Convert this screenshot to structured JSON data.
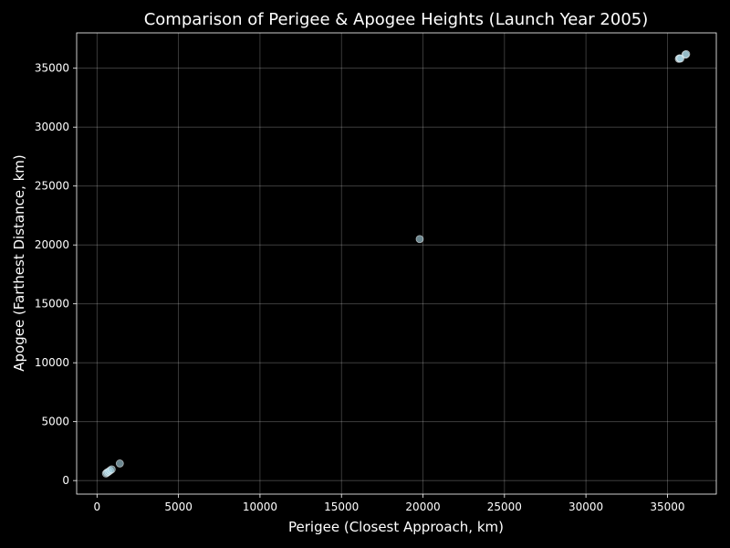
{
  "chart_data": {
    "type": "scatter",
    "title": "Comparison of Perigee & Apogee Heights (Launch Year 2005)",
    "xlabel": "Perigee (Closest Approach, km)",
    "ylabel": "Apogee (Farthest Distance, km)",
    "xlim": [
      -1250,
      38000
    ],
    "ylim": [
      -1150,
      38000
    ],
    "xticks": [
      0,
      5000,
      10000,
      15000,
      20000,
      25000,
      30000,
      35000
    ],
    "yticks": [
      0,
      5000,
      10000,
      15000,
      20000,
      25000,
      30000,
      35000
    ],
    "grid": true,
    "point_color": "#add8e6",
    "background_color": "#000000",
    "points": [
      {
        "x": 550,
        "y": 600
      },
      {
        "x": 620,
        "y": 680
      },
      {
        "x": 700,
        "y": 750
      },
      {
        "x": 800,
        "y": 850
      },
      {
        "x": 900,
        "y": 950
      },
      {
        "x": 1400,
        "y": 1450
      },
      {
        "x": 19800,
        "y": 20500
      },
      {
        "x": 35700,
        "y": 35800
      },
      {
        "x": 35750,
        "y": 35850
      },
      {
        "x": 35800,
        "y": 35820
      },
      {
        "x": 36100,
        "y": 36150
      },
      {
        "x": 36150,
        "y": 36200
      }
    ]
  }
}
